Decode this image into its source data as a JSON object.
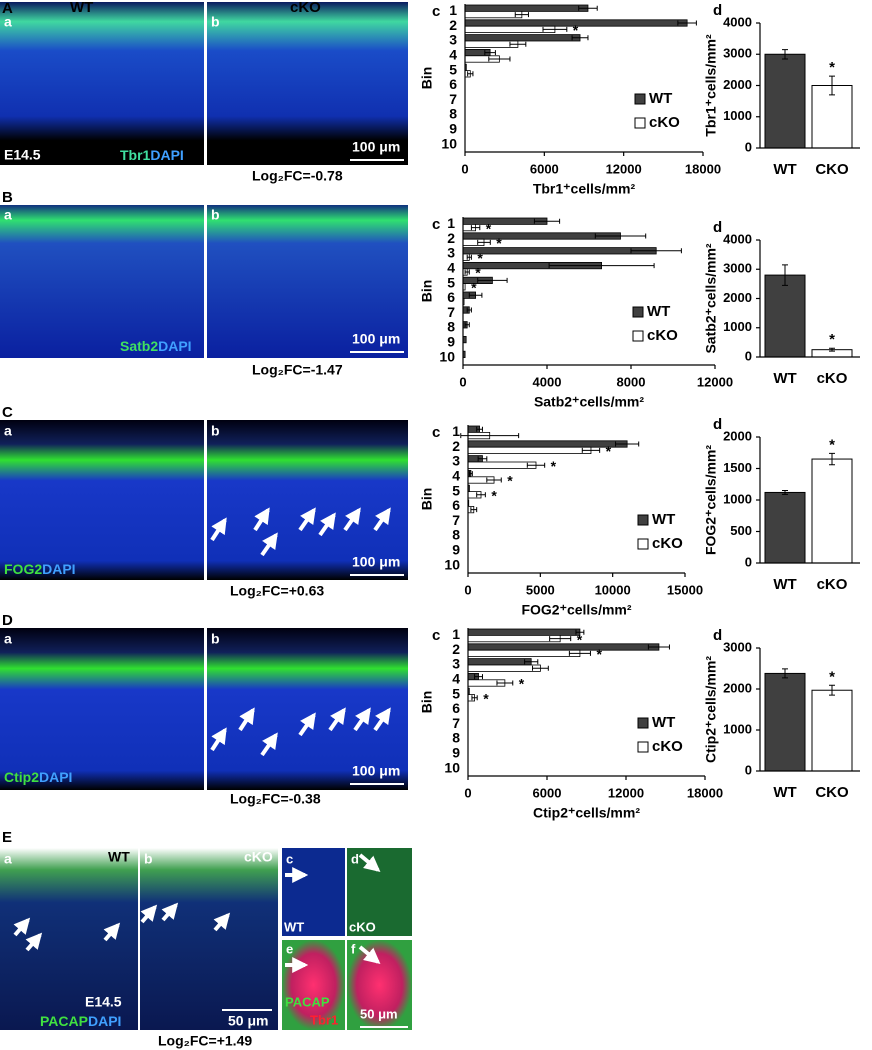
{
  "image_panels": [
    {
      "letter": "A",
      "sub_a": "a",
      "sub_b": "b",
      "left": "WT",
      "right": "cKO",
      "stage": "E14.5",
      "marker": "Tbr1",
      "counterstain": "DAPI",
      "scale": "100 μm",
      "fold_change": "Log₂FC=-0.78"
    },
    {
      "letter": "B",
      "sub_a": "a",
      "sub_b": "b",
      "marker": "Satb2",
      "counterstain": "DAPI",
      "scale": "100 μm",
      "fold_change": "Log₂FC=-1.47"
    },
    {
      "letter": "C",
      "sub_a": "a",
      "sub_b": "b",
      "marker": "FOG2",
      "counterstain": "DAPI",
      "scale": "100 μm",
      "fold_change": "Log₂FC=+0.63"
    },
    {
      "letter": "D",
      "sub_a": "a",
      "sub_b": "b",
      "marker": "Ctip2",
      "counterstain": "DAPI",
      "scale": "100 μm",
      "fold_change": "Log₂FC=-0.38"
    }
  ],
  "panel_e": {
    "letter": "E",
    "sub_a": "a",
    "sub_b": "b",
    "sub_c": "c",
    "sub_d": "d",
    "sub_e": "e",
    "sub_f": "f",
    "wt": "WT",
    "cko": "cKO",
    "wt_c": "WT",
    "cko_d": "cKO",
    "stage": "E14.5",
    "marker": "PACAP",
    "counterstain": "DAPI",
    "scale": "50 μm",
    "marker_ef": "PACAP",
    "marker_ef2": "Tbr1",
    "scale_ef": "50 μm",
    "fold_change": "Log₂FC=+1.49"
  },
  "chart_data": [
    {
      "type": "hbar",
      "label": "c",
      "y_label": "Bin",
      "x_label": "Tbr1⁺cells/mm²",
      "categories": [
        "1",
        "2",
        "3",
        "4",
        "5",
        "6",
        "7",
        "8",
        "9",
        "10"
      ],
      "xlim": [
        0,
        18000
      ],
      "xticks": [
        0,
        6000,
        12000,
        18000
      ],
      "series": [
        {
          "name": "WT",
          "color": "#404040",
          "values": [
            9300,
            16800,
            8700,
            1900,
            100,
            0,
            0,
            0,
            0,
            0
          ],
          "errors": [
            700,
            700,
            600,
            400,
            null,
            null,
            null,
            null,
            null,
            null
          ]
        },
        {
          "name": "cKO",
          "color": "#ffffff",
          "values": [
            4300,
            6800,
            4000,
            2600,
            400,
            0,
            0,
            0,
            0,
            0
          ],
          "errors": [
            500,
            900,
            600,
            800,
            200,
            null,
            null,
            null,
            null,
            null
          ],
          "annotations": [
            null,
            "*",
            null,
            null,
            null,
            null,
            null,
            null,
            null,
            null
          ]
        }
      ]
    },
    {
      "type": "bar",
      "label": "d",
      "y_label": "Tbr1⁺cells/mm²",
      "categories": [
        "WT",
        "CKO"
      ],
      "values": [
        3000,
        2000
      ],
      "errors": [
        150,
        300
      ],
      "colors": [
        "#404040",
        "#ffffff"
      ],
      "annotations": [
        null,
        "*"
      ],
      "ylim": [
        0,
        4000
      ],
      "yticks": [
        0,
        1000,
        2000,
        3000,
        4000
      ]
    },
    {
      "type": "hbar",
      "label": "c",
      "y_label": "Bin",
      "x_label": "Satb2⁺cells/mm²",
      "categories": [
        "1",
        "2",
        "3",
        "4",
        "5",
        "6",
        "7",
        "8",
        "9",
        "10"
      ],
      "xlim": [
        0,
        12000
      ],
      "xticks": [
        0,
        4000,
        8000,
        12000
      ],
      "series": [
        {
          "name": "WT",
          "color": "#404040",
          "values": [
            4000,
            7500,
            9200,
            6600,
            1400,
            600,
            300,
            200,
            150,
            100
          ],
          "errors": [
            600,
            1200,
            1200,
            2500,
            700,
            300,
            100,
            100,
            null,
            null
          ]
        },
        {
          "name": "cKO",
          "color": "#ffffff",
          "values": [
            600,
            1000,
            300,
            200,
            100,
            50,
            0,
            0,
            0,
            0
          ],
          "errors": [
            200,
            300,
            100,
            100,
            null,
            null,
            null,
            null,
            null,
            null
          ],
          "annotations": [
            "*",
            "*",
            "*",
            "*",
            "*",
            null,
            null,
            null,
            null,
            null
          ]
        }
      ]
    },
    {
      "type": "bar",
      "label": "d",
      "y_label": "Satb2⁺cells/mm²",
      "categories": [
        "WT",
        "cKO"
      ],
      "values": [
        2800,
        250
      ],
      "errors": [
        350,
        50
      ],
      "colors": [
        "#404040",
        "#ffffff"
      ],
      "annotations": [
        null,
        "*"
      ],
      "ylim": [
        0,
        4000
      ],
      "yticks": [
        0,
        1000,
        2000,
        3000,
        4000
      ]
    },
    {
      "type": "hbar",
      "label": "c",
      "y_label": "Bin",
      "x_label": "FOG2⁺cells/mm²",
      "categories": [
        "1",
        "2",
        "3",
        "4",
        "5",
        "6",
        "7",
        "8",
        "9",
        "10"
      ],
      "xlim": [
        0,
        15000
      ],
      "xticks": [
        0,
        5000,
        10000,
        15000
      ],
      "series": [
        {
          "name": "WT",
          "color": "#404040",
          "values": [
            800,
            11000,
            1000,
            200,
            100,
            50,
            0,
            0,
            0,
            0
          ],
          "errors": [
            200,
            800,
            300,
            100,
            null,
            null,
            null,
            null,
            null,
            null
          ]
        },
        {
          "name": "cKO",
          "color": "#ffffff",
          "values": [
            1500,
            8500,
            4700,
            1800,
            900,
            400,
            0,
            0,
            0,
            0
          ],
          "errors": [
            2000,
            600,
            600,
            500,
            300,
            200,
            null,
            null,
            null,
            null
          ],
          "annotations": [
            null,
            "*",
            "*",
            "*",
            "*",
            null,
            null,
            null,
            null,
            null
          ]
        }
      ]
    },
    {
      "type": "bar",
      "label": "d",
      "y_label": "FOG2⁺cells/mm²",
      "categories": [
        "WT",
        "cKO"
      ],
      "values": [
        1120,
        1650
      ],
      "errors": [
        30,
        90
      ],
      "colors": [
        "#404040",
        "#ffffff"
      ],
      "annotations": [
        null,
        "*"
      ],
      "ylim": [
        0,
        2000
      ],
      "yticks": [
        0,
        500,
        1000,
        1500,
        2000
      ]
    },
    {
      "type": "hbar",
      "label": "c",
      "y_label": "Bin",
      "x_label": "Ctip2⁺cells/mm²",
      "categories": [
        "1",
        "2",
        "3",
        "4",
        "5",
        "6",
        "7",
        "8",
        "9",
        "10"
      ],
      "xlim": [
        0,
        18000
      ],
      "xticks": [
        0,
        6000,
        12000,
        18000
      ],
      "series": [
        {
          "name": "WT",
          "color": "#404040",
          "values": [
            8500,
            14500,
            4800,
            800,
            100,
            0,
            0,
            0,
            0,
            0
          ],
          "errors": [
            300,
            800,
            500,
            300,
            null,
            null,
            null,
            null,
            null,
            null
          ]
        },
        {
          "name": "cKO",
          "color": "#ffffff",
          "values": [
            7000,
            8500,
            5500,
            2800,
            500,
            0,
            0,
            0,
            0,
            0
          ],
          "errors": [
            800,
            800,
            600,
            600,
            200,
            null,
            null,
            null,
            null,
            null
          ],
          "annotations": [
            "*",
            "*",
            null,
            "*",
            "*",
            null,
            null,
            null,
            null,
            null
          ]
        }
      ]
    },
    {
      "type": "bar",
      "label": "d",
      "y_label": "Ctip2⁺cells/mm²",
      "categories": [
        "WT",
        "CKO"
      ],
      "values": [
        2380,
        1970
      ],
      "errors": [
        110,
        120
      ],
      "colors": [
        "#404040",
        "#ffffff"
      ],
      "annotations": [
        null,
        "*"
      ],
      "ylim": [
        0,
        3000
      ],
      "yticks": [
        0,
        1000,
        2000,
        3000
      ]
    }
  ]
}
